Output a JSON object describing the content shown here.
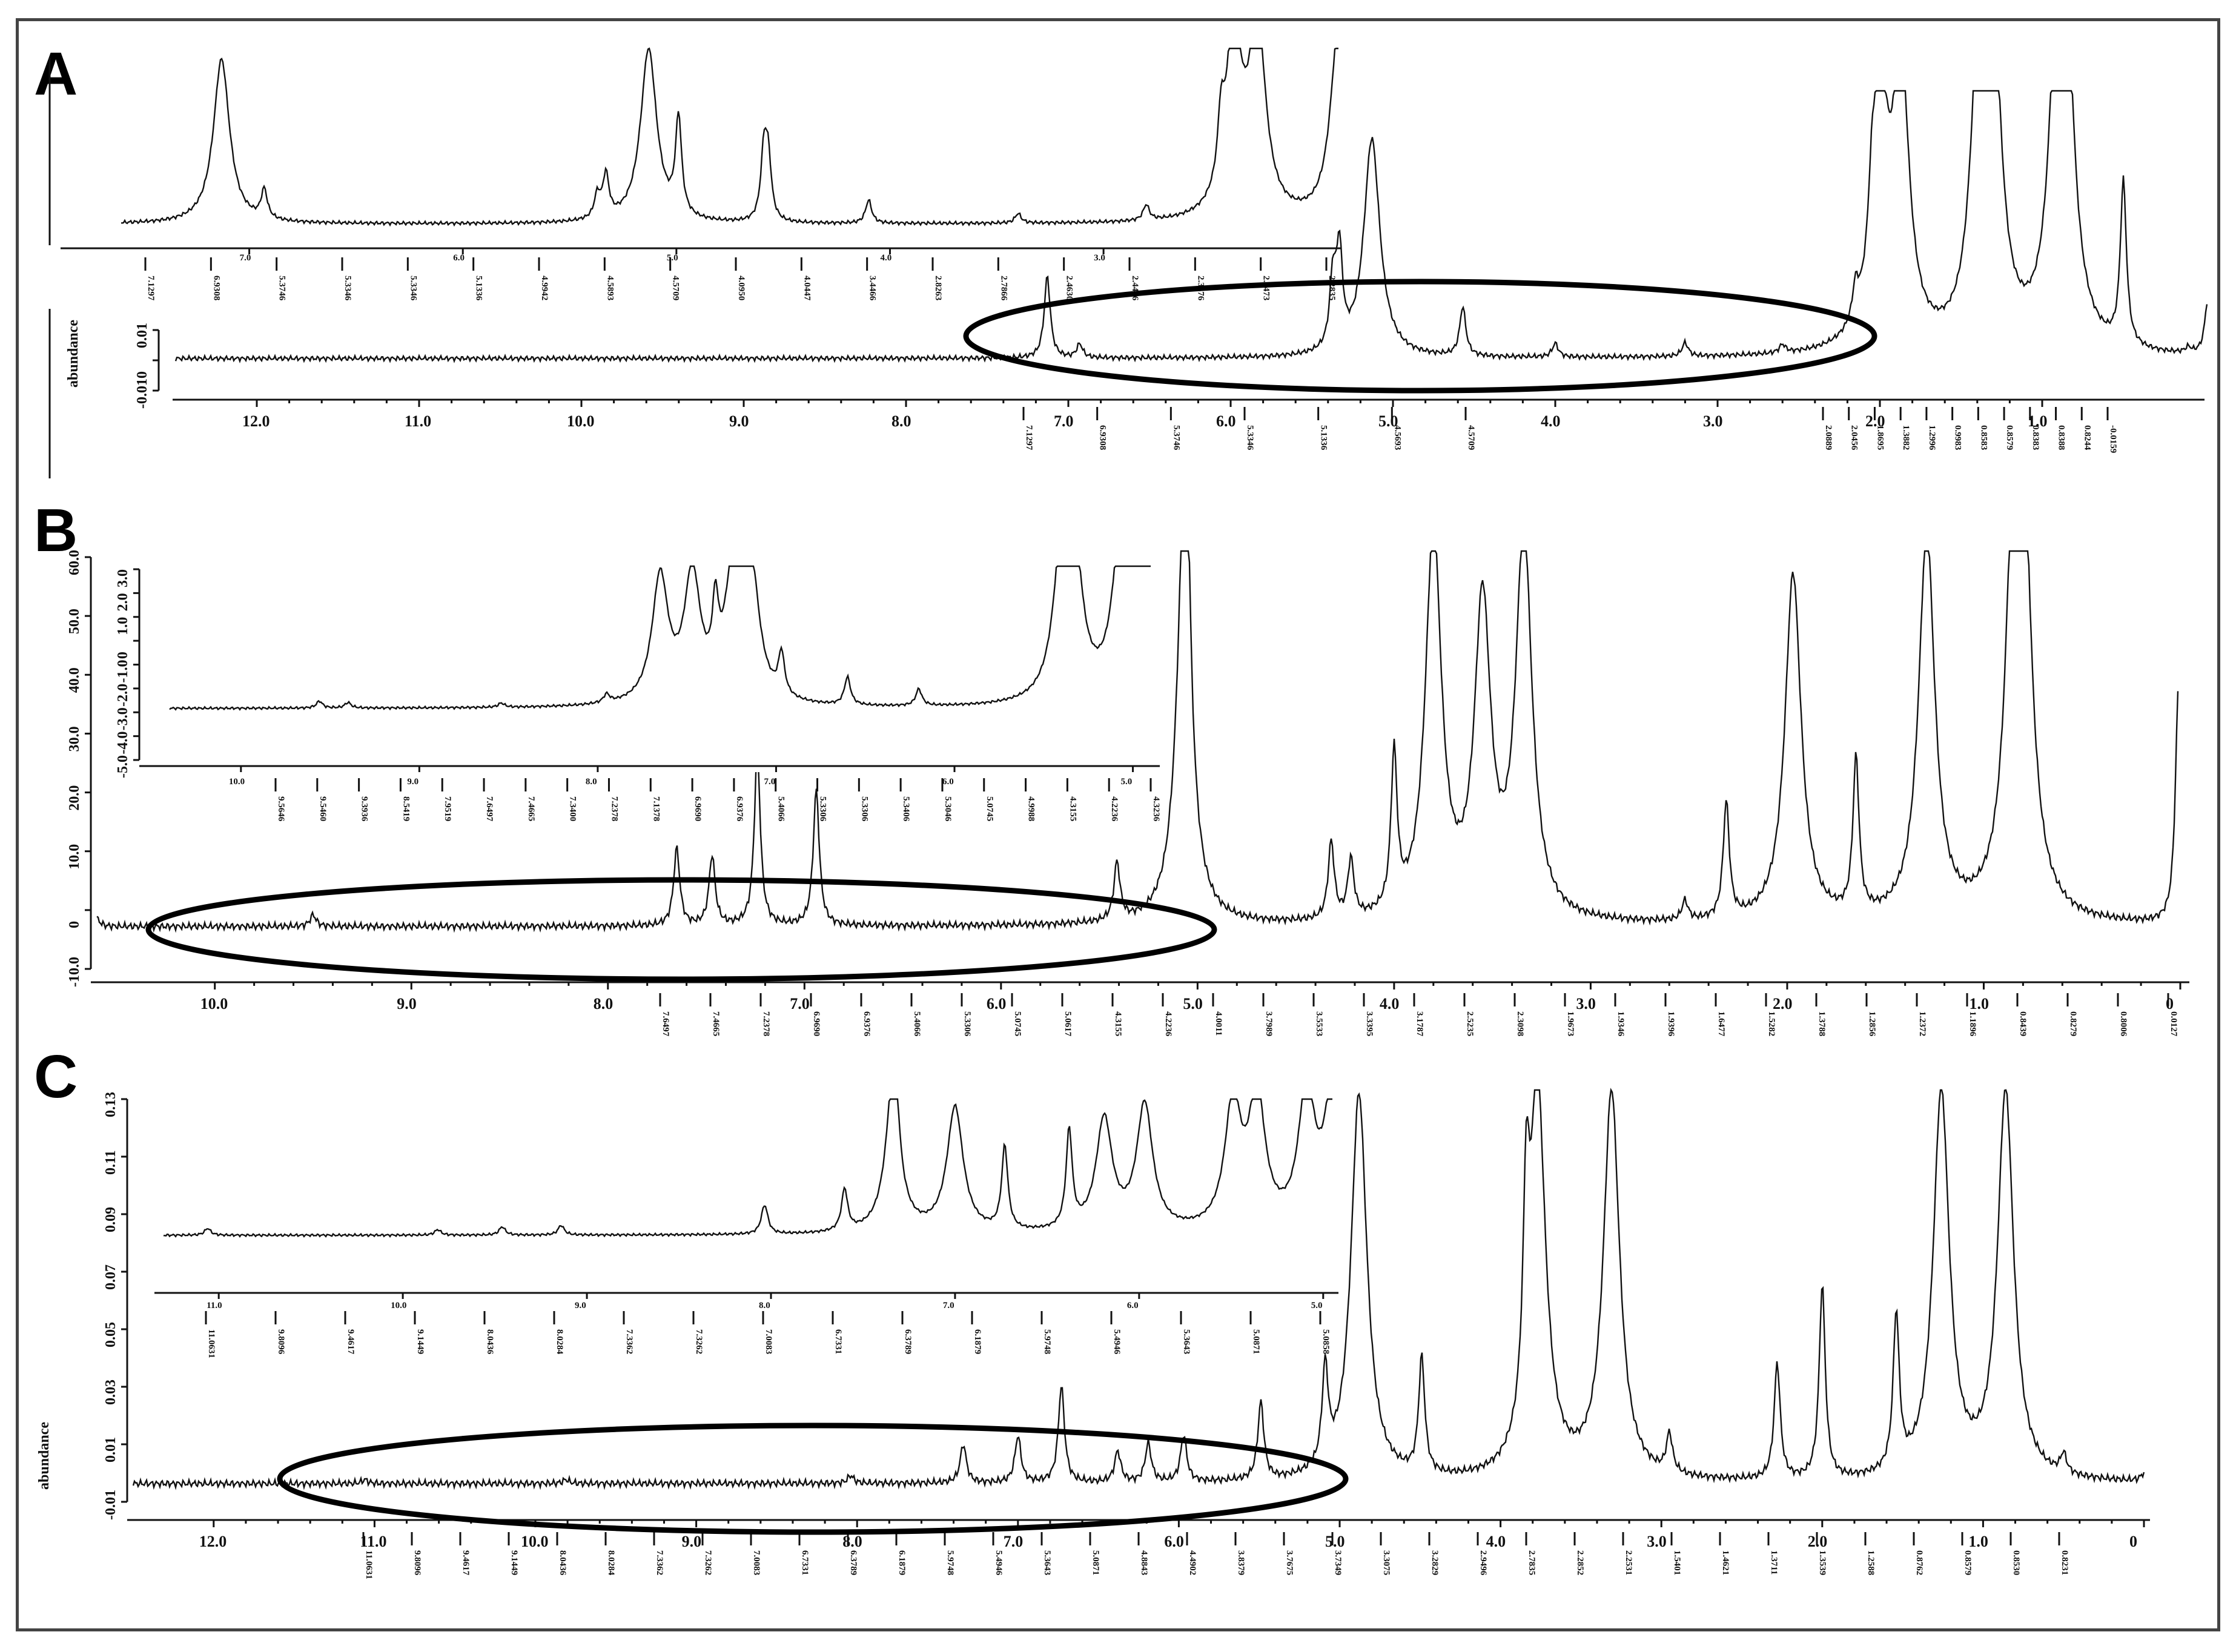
{
  "panels": [
    {
      "letter": "A"
    },
    {
      "letter": "B"
    },
    {
      "letter": "C"
    }
  ],
  "chart_data": [
    {
      "panel": "A",
      "type": "line",
      "title": "",
      "ylabel": "abundance",
      "xlim": [
        12.5,
        0
      ],
      "x_ticks": [
        "12.0",
        "11.0",
        "10.0",
        "9.0",
        "8.0",
        "7.0",
        "6.0",
        "5.0",
        "4.0",
        "3.0",
        "2.0",
        "1.0"
      ],
      "y_ticks": [
        "0.01",
        "0",
        "-0.01"
      ],
      "peak_labels": [
        "7.1297",
        "6.9308",
        "5.3746",
        "5.3346",
        "5.1336",
        "4.5693",
        "4.5709",
        "2.0889",
        "2.0456",
        "1.8695",
        "1.3882",
        "1.2996",
        "0.9983",
        "0.8583",
        "0.8579",
        "0.8383",
        "0.8388",
        "0.8244",
        "-0.0159"
      ],
      "series": [
        {
          "values": [
            [
              12.5,
              0
            ],
            [
              7.13,
              0.3
            ],
            [
              6.93,
              0.05
            ],
            [
              5.37,
              0.25
            ],
            [
              5.33,
              0.35
            ],
            [
              5.13,
              0.8
            ],
            [
              4.57,
              0.18
            ],
            [
              4.0,
              0.05
            ],
            [
              3.2,
              0.05
            ],
            [
              2.6,
              0.03
            ],
            [
              2.15,
              0.12
            ],
            [
              2.05,
              0.2
            ],
            [
              2.0,
              0.9
            ],
            [
              1.87,
              1.0
            ],
            [
              1.39,
              1.0
            ],
            [
              1.3,
              1.0
            ],
            [
              0.9,
              1.0
            ],
            [
              0.86,
              1.0
            ],
            [
              0.5,
              0.6
            ],
            [
              0.1,
              0.02
            ],
            [
              -0.02,
              0.2
            ]
          ]
        }
      ],
      "inset": {
        "x_ticks": [
          "7.0",
          "6.0",
          "5.0",
          "4.0",
          "3.0"
        ],
        "peak_labels": [
          "7.1297",
          "6.9308",
          "5.3746",
          "5.3346",
          "5.3346",
          "5.1336",
          "4.9942",
          "4.5893",
          "4.5709",
          "4.0950",
          "4.0447",
          "3.4466",
          "2.8263",
          "2.7866",
          "2.4630",
          "2.4416",
          "2.3876",
          "2.3473",
          "2.2835"
        ]
      }
    },
    {
      "panel": "B",
      "type": "line",
      "title": "",
      "ylabel": "",
      "xlim": [
        10.6,
        0
      ],
      "x_ticks": [
        "10.0",
        "9.0",
        "8.0",
        "7.0",
        "6.0",
        "5.0",
        "4.0",
        "3.0",
        "2.0",
        "1.0",
        "0"
      ],
      "y_ticks": [
        "60.0",
        "50.0",
        "40.0",
        "30.0",
        "20.0",
        "10.0",
        "0",
        "-10.0"
      ],
      "peak_labels": [
        "7.6497",
        "7.4665",
        "7.2378",
        "6.9690",
        "6.9376",
        "5.4066",
        "5.3306",
        "5.0745",
        "5.0617",
        "4.3155",
        "4.2236",
        "4.0011",
        "3.7989",
        "3.5533",
        "3.3395",
        "3.1787",
        "2.5235",
        "2.3098",
        "1.9673",
        "1.9346",
        "1.9396",
        "1.6477",
        "1.5282",
        "1.3788",
        "1.2856",
        "1.2372",
        "1.1896",
        "0.8439",
        "0.8279",
        "0.8006",
        "0.0127"
      ],
      "series": [
        {
          "values": [
            [
              10.6,
              0.02
            ],
            [
              9.5,
              0.03
            ],
            [
              7.65,
              0.2
            ],
            [
              7.47,
              0.18
            ],
            [
              7.24,
              0.45
            ],
            [
              6.94,
              0.35
            ],
            [
              5.41,
              0.15
            ],
            [
              5.07,
              0.8
            ],
            [
              5.06,
              0.7
            ],
            [
              4.32,
              0.2
            ],
            [
              4.22,
              0.15
            ],
            [
              4.0,
              0.4
            ],
            [
              3.8,
              1.0
            ],
            [
              3.55,
              0.8
            ],
            [
              3.34,
              1.0
            ],
            [
              2.52,
              0.05
            ],
            [
              2.31,
              0.3
            ],
            [
              1.97,
              0.9
            ],
            [
              1.65,
              0.4
            ],
            [
              1.29,
              1.0
            ],
            [
              0.84,
              1.0
            ],
            [
              0.8,
              0.8
            ],
            [
              0.01,
              0.6
            ]
          ]
        }
      ],
      "inset": {
        "x_ticks": [
          "10.0",
          "9.0",
          "8.0",
          "7.0",
          "6.0",
          "5.0"
        ],
        "y_ticks": [
          "3.0",
          "2.0",
          "1.0",
          "0",
          "-1.0",
          "-2.0",
          "-3.0",
          "-4.0",
          "-5.0"
        ],
        "peak_labels": [
          "9.5646",
          "9.5460",
          "9.3936",
          "8.5419",
          "7.9519",
          "7.6497",
          "7.4665",
          "7.3400",
          "7.2378",
          "7.1378",
          "6.9690",
          "6.9376",
          "5.4066",
          "5.3306",
          "5.3306",
          "5.3406",
          "5.3046",
          "5.0745",
          "4.9988",
          "4.3155",
          "4.2236",
          "4.3236"
        ]
      }
    },
    {
      "panel": "C",
      "type": "line",
      "title": "",
      "ylabel": "abundance",
      "xlim": [
        12.5,
        0
      ],
      "x_ticks": [
        "12.0",
        "11.0",
        "10.0",
        "9.0",
        "8.0",
        "7.0",
        "6.0",
        "5.0",
        "4.0",
        "3.0",
        "2.0",
        "1.0",
        "0"
      ],
      "y_ticks": [
        "0.13",
        "0.11",
        "0.09",
        "0.07",
        "0.05",
        "0.03",
        "0.01",
        "-0.01"
      ],
      "peak_labels": [
        "11.0631",
        "9.8096",
        "9.4617",
        "9.1449",
        "8.0436",
        "8.0284",
        "7.3362",
        "7.3262",
        "7.0083",
        "6.7331",
        "6.3789",
        "6.1879",
        "5.9748",
        "5.4946",
        "5.3643",
        "5.0871",
        "4.8843",
        "4.4902",
        "3.8379",
        "3.7675",
        "3.7349",
        "3.3075",
        "3.2829",
        "2.9496",
        "2.7835",
        "2.2852",
        "2.2531",
        "1.5401",
        "1.4621",
        "1.3711",
        "1.3539",
        "1.2588",
        "0.8762",
        "0.8579",
        "0.8530",
        "0.8231"
      ],
      "series": [
        {
          "values": [
            [
              12.5,
              0
            ],
            [
              11.06,
              0.01
            ],
            [
              9.81,
              0.01
            ],
            [
              8.04,
              0.02
            ],
            [
              7.34,
              0.1
            ],
            [
              7.0,
              0.12
            ],
            [
              6.73,
              0.25
            ],
            [
              6.38,
              0.08
            ],
            [
              6.19,
              0.1
            ],
            [
              5.97,
              0.12
            ],
            [
              5.49,
              0.2
            ],
            [
              5.09,
              0.25
            ],
            [
              4.88,
              1.0
            ],
            [
              4.49,
              0.3
            ],
            [
              3.84,
              0.5
            ],
            [
              3.77,
              1.0
            ],
            [
              3.31,
              1.0
            ],
            [
              2.95,
              0.1
            ],
            [
              2.28,
              0.3
            ],
            [
              2.0,
              0.5
            ],
            [
              1.54,
              0.4
            ],
            [
              1.26,
              1.0
            ],
            [
              0.86,
              1.0
            ],
            [
              0.5,
              0.05
            ],
            [
              0,
              0.02
            ]
          ]
        }
      ],
      "inset": {
        "x_ticks": [
          "11.0",
          "10.0",
          "9.0",
          "8.0",
          "7.0",
          "6.0",
          "5.0"
        ],
        "peak_labels": [
          "11.0631",
          "9.8096",
          "9.4617",
          "9.1449",
          "8.0436",
          "8.0284",
          "7.3362",
          "7.3262",
          "7.0083",
          "6.7331",
          "6.3789",
          "6.1879",
          "5.9748",
          "5.4946",
          "5.3643",
          "5.0871",
          "5.0858"
        ]
      }
    }
  ]
}
